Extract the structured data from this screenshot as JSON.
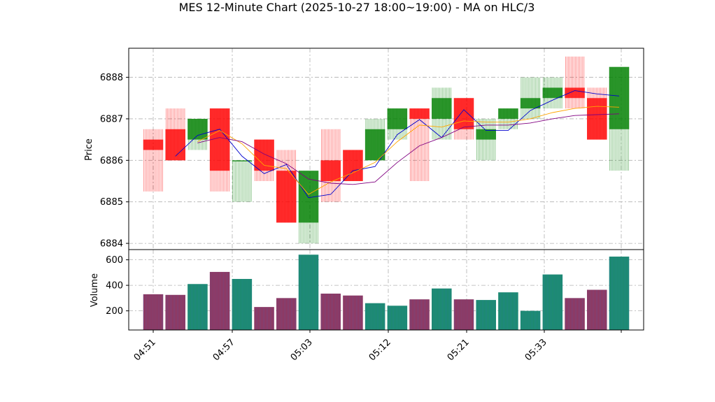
{
  "chart_data": [
    {
      "type": "candlestick",
      "title": "MES 12-Minute Chart (2025-10-27 18:00~19:00) - MA on HLC/3",
      "ylabel": "Price",
      "ylim": [
        6883.85,
        6888.7
      ],
      "yticks": [
        6884,
        6885,
        6886,
        6887,
        6888
      ],
      "grid": true,
      "x_tick_labels": [
        "04:51",
        "04:57",
        "05:03",
        "05:12",
        "05:21",
        "05:33",
        ""
      ],
      "colors": {
        "up": "#008000",
        "down": "#ff0000",
        "ma_fast": "#0000cd",
        "ma_mid": "#ffa500",
        "ma_slow": "#800080"
      },
      "candles": [
        {
          "open": 6886.5,
          "high": 6886.75,
          "low": 6885.25,
          "close": 6886.25
        },
        {
          "open": 6886.75,
          "high": 6887.25,
          "low": 6886.0,
          "close": 6886.0
        },
        {
          "open": 6886.5,
          "high": 6887.0,
          "low": 6886.25,
          "close": 6887.0
        },
        {
          "open": 6887.25,
          "high": 6887.25,
          "low": 6885.25,
          "close": 6885.75
        },
        {
          "open": 6886.0,
          "high": 6886.0,
          "low": 6885.0,
          "close": 6886.0
        },
        {
          "open": 6886.5,
          "high": 6886.5,
          "low": 6885.5,
          "close": 6885.75
        },
        {
          "open": 6885.75,
          "high": 6886.25,
          "low": 6884.5,
          "close": 6884.5
        },
        {
          "open": 6884.5,
          "high": 6885.75,
          "low": 6884.0,
          "close": 6885.75
        },
        {
          "open": 6886.0,
          "high": 6886.75,
          "low": 6885.0,
          "close": 6885.5
        },
        {
          "open": 6886.25,
          "high": 6886.25,
          "low": 6885.5,
          "close": 6885.5
        },
        {
          "open": 6886.0,
          "high": 6887.0,
          "low": 6886.0,
          "close": 6886.75
        },
        {
          "open": 6886.75,
          "high": 6887.25,
          "low": 6886.5,
          "close": 6887.25
        },
        {
          "open": 6887.25,
          "high": 6887.25,
          "low": 6885.5,
          "close": 6887.0
        },
        {
          "open": 6887.0,
          "high": 6887.75,
          "low": 6886.5,
          "close": 6887.5
        },
        {
          "open": 6887.5,
          "high": 6887.5,
          "low": 6886.5,
          "close": 6886.75
        },
        {
          "open": 6886.5,
          "high": 6887.0,
          "low": 6886.0,
          "close": 6886.75
        },
        {
          "open": 6887.0,
          "high": 6887.25,
          "low": 6886.75,
          "close": 6887.25
        },
        {
          "open": 6887.25,
          "high": 6888.0,
          "low": 6887.0,
          "close": 6887.5
        },
        {
          "open": 6887.5,
          "high": 6888.0,
          "low": 6887.25,
          "close": 6887.75
        },
        {
          "open": 6887.75,
          "high": 6888.5,
          "low": 6887.25,
          "close": 6887.5
        },
        {
          "open": 6887.5,
          "high": 6887.75,
          "low": 6886.5,
          "close": 6886.5
        },
        {
          "open": 6886.75,
          "high": 6888.25,
          "low": 6885.75,
          "close": 6888.25
        }
      ],
      "ma_fast": [
        null,
        6886.1,
        6886.6,
        6886.75,
        6886.1,
        6885.68,
        6885.9,
        6885.1,
        6885.18,
        6885.75,
        6885.85,
        6886.62,
        6886.98,
        6886.55,
        6887.22,
        6886.72,
        6886.72,
        6887.2,
        6887.45,
        6887.68,
        6887.6,
        6887.55
      ],
      "ma_mid": [
        null,
        null,
        6886.45,
        6886.72,
        6886.4,
        6885.88,
        6885.8,
        6885.18,
        6885.48,
        6885.7,
        6885.95,
        6886.45,
        6886.85,
        6886.8,
        6886.95,
        6886.92,
        6886.92,
        6887.0,
        6887.15,
        6887.25,
        6887.3,
        6887.28
      ],
      "ma_slow": [
        null,
        null,
        6886.42,
        6886.55,
        6886.45,
        6886.15,
        6885.92,
        6885.55,
        6885.45,
        6885.42,
        6885.48,
        6885.95,
        6886.35,
        6886.55,
        6886.8,
        6886.85,
        6886.85,
        6886.9,
        6887.0,
        6887.08,
        6887.1,
        6887.12
      ]
    },
    {
      "type": "bar",
      "ylabel": "Volume",
      "ylim": [
        50,
        680
      ],
      "yticks": [
        200,
        400,
        600
      ],
      "grid": true,
      "values": [
        330,
        325,
        410,
        505,
        450,
        230,
        300,
        640,
        335,
        320,
        260,
        240,
        290,
        375,
        290,
        285,
        345,
        200,
        485,
        300,
        365,
        625
      ]
    }
  ]
}
